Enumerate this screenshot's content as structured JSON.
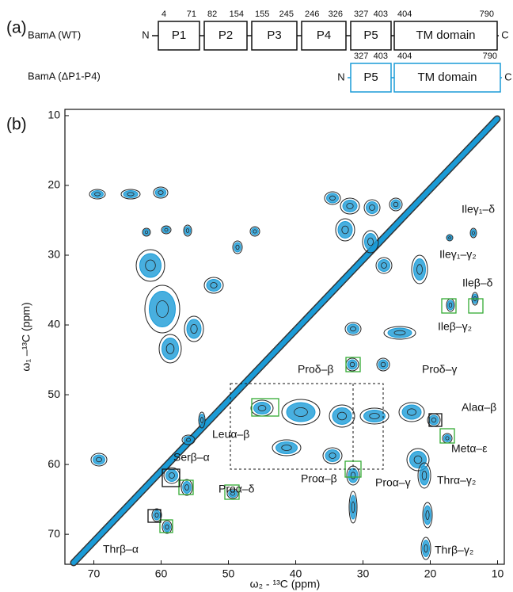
{
  "panel_a": {
    "label": "(a)",
    "wt": {
      "name": "BamA (WT)",
      "n": "N",
      "c": "C",
      "domains": [
        {
          "label": "P1",
          "start": 4,
          "end": 71
        },
        {
          "label": "P2",
          "start": 82,
          "end": 154
        },
        {
          "label": "P3",
          "start": 155,
          "end": 245
        },
        {
          "label": "P4",
          "start": 246,
          "end": 326
        },
        {
          "label": "P5",
          "start": 327,
          "end": 403
        },
        {
          "label": "TM domain",
          "start": 404,
          "end": 790
        }
      ]
    },
    "mutant": {
      "name": "BamA (ΔP1-P4)",
      "n": "N",
      "c": "C",
      "domains": [
        {
          "label": "P5",
          "start": 327,
          "end": 403
        },
        {
          "label": "TM domain",
          "start": 404,
          "end": 790
        }
      ]
    }
  },
  "panel_b": {
    "label": "(b)",
    "x_label": "ω₂ - ¹³C (ppm)",
    "y_label": "ω₁ –¹³C (ppm)",
    "xlim": [
      74.3,
      9
    ],
    "ylim": [
      9.1,
      74.3
    ],
    "xticks": [
      70,
      60,
      50,
      40,
      30,
      20,
      10
    ],
    "yticks": [
      10,
      20,
      30,
      40,
      50,
      60,
      70
    ],
    "annotations": [
      "Ileγ₁–δ",
      "Ileγ₁–γ₂",
      "Ileβ–δ",
      "Ileβ–γ₂",
      "Proδ–β",
      "Proδ–γ",
      "Alaα–β",
      "Metα–ε",
      "Leuα–β",
      "Serβ–α",
      "Proα–δ",
      "Proα–β",
      "Proα–γ",
      "Thrα–γ₂",
      "Thrβ–α",
      "Thrβ–γ₂"
    ]
  }
}
